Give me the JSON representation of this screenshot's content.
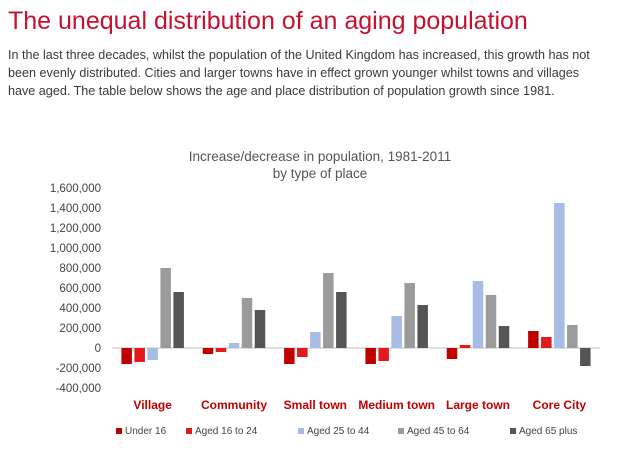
{
  "page": {
    "title": "The unequal distribution of an aging population",
    "intro": "In the last three decades, whilst the population of the United Kingdom has increased, this growth has not been evenly distributed. Cities and larger towns have in effect grown younger whilst towns and villages have aged. The table below shows the age and place distribution of population growth since 1981."
  },
  "chart_data": {
    "type": "bar",
    "title": "Increase/decrease in population, 1981-2011",
    "subtitle": "by type of place",
    "xlabel": "",
    "ylabel": "",
    "ylim": [
      -400000,
      1600000
    ],
    "yticks": [
      1600000,
      1400000,
      1200000,
      1000000,
      800000,
      600000,
      400000,
      200000,
      0,
      -200000,
      -400000
    ],
    "ytick_labels": [
      "1,600,000",
      "1,400,000",
      "1,200,000",
      "1,000,000",
      "800,000",
      "600,000",
      "400,000",
      "200,000",
      "0",
      "-200,000",
      "-400,000"
    ],
    "grid": false,
    "legend_position": "bottom",
    "categories": [
      "Village",
      "Community",
      "Small town",
      "Medium town",
      "Large town",
      "Core City"
    ],
    "series": [
      {
        "name": "Under 16",
        "color": "#c00000",
        "values": [
          -160000,
          -60000,
          -160000,
          -160000,
          -110000,
          170000
        ]
      },
      {
        "name": "Aged 16 to 24",
        "color": "#e31a1c",
        "values": [
          -140000,
          -40000,
          -90000,
          -130000,
          30000,
          110000
        ]
      },
      {
        "name": "Aged 25 to 44",
        "color": "#a7bde6",
        "values": [
          -120000,
          50000,
          160000,
          320000,
          670000,
          1450000
        ]
      },
      {
        "name": "Aged 45 to 64",
        "color": "#9b9b9b",
        "values": [
          800000,
          500000,
          750000,
          650000,
          530000,
          230000
        ]
      },
      {
        "name": "Aged 65 plus",
        "color": "#555555",
        "values": [
          560000,
          380000,
          560000,
          430000,
          220000,
          -180000
        ]
      }
    ]
  }
}
